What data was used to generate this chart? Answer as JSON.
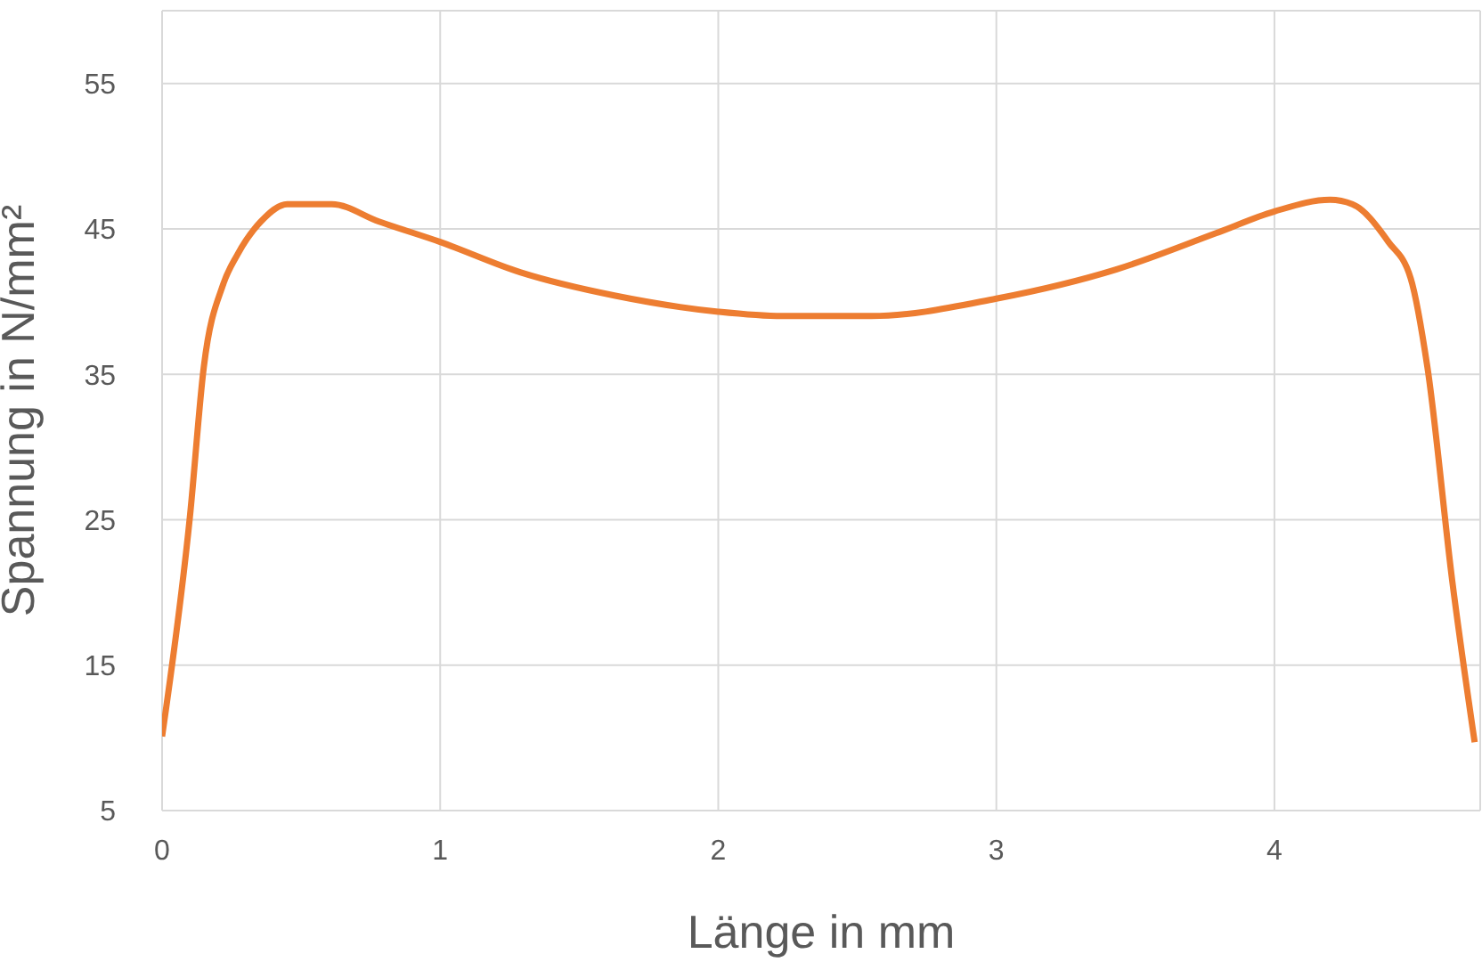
{
  "chart_data": {
    "type": "line",
    "xlabel": "Länge in mm",
    "ylabel": "Spannung in N/mm²",
    "series": [
      {
        "color": "#ed7d31",
        "x": [
          0,
          0.1,
          0.15,
          0.22,
          0.27,
          0.355,
          0.45,
          0.61,
          0.78,
          1.0,
          1.29,
          1.63,
          2.0,
          2.23,
          2.55,
          3.0,
          3.43,
          3.79,
          4.0,
          4.2,
          4.28,
          4.41,
          4.49,
          4.55,
          4.64,
          4.72
        ],
        "values": [
          10.1,
          25.2,
          35.5,
          41.2,
          43.2,
          45.5,
          46.7,
          46.7,
          45.5,
          44.1,
          42.0,
          40.4,
          39.3,
          39.0,
          39.0,
          40.2,
          42.2,
          44.7,
          46.2,
          47.0,
          46.7,
          44.1,
          41.6,
          35.5,
          20.7,
          9.7
        ]
      }
    ],
    "xlim": [
      0,
      4.74
    ],
    "xticks": [
      0,
      1,
      2,
      3,
      4
    ],
    "ylim": [
      5,
      60
    ],
    "yticks": [
      5,
      15,
      25,
      35,
      45,
      55
    ],
    "grid": true,
    "marker": "none",
    "line_style": "solid"
  }
}
